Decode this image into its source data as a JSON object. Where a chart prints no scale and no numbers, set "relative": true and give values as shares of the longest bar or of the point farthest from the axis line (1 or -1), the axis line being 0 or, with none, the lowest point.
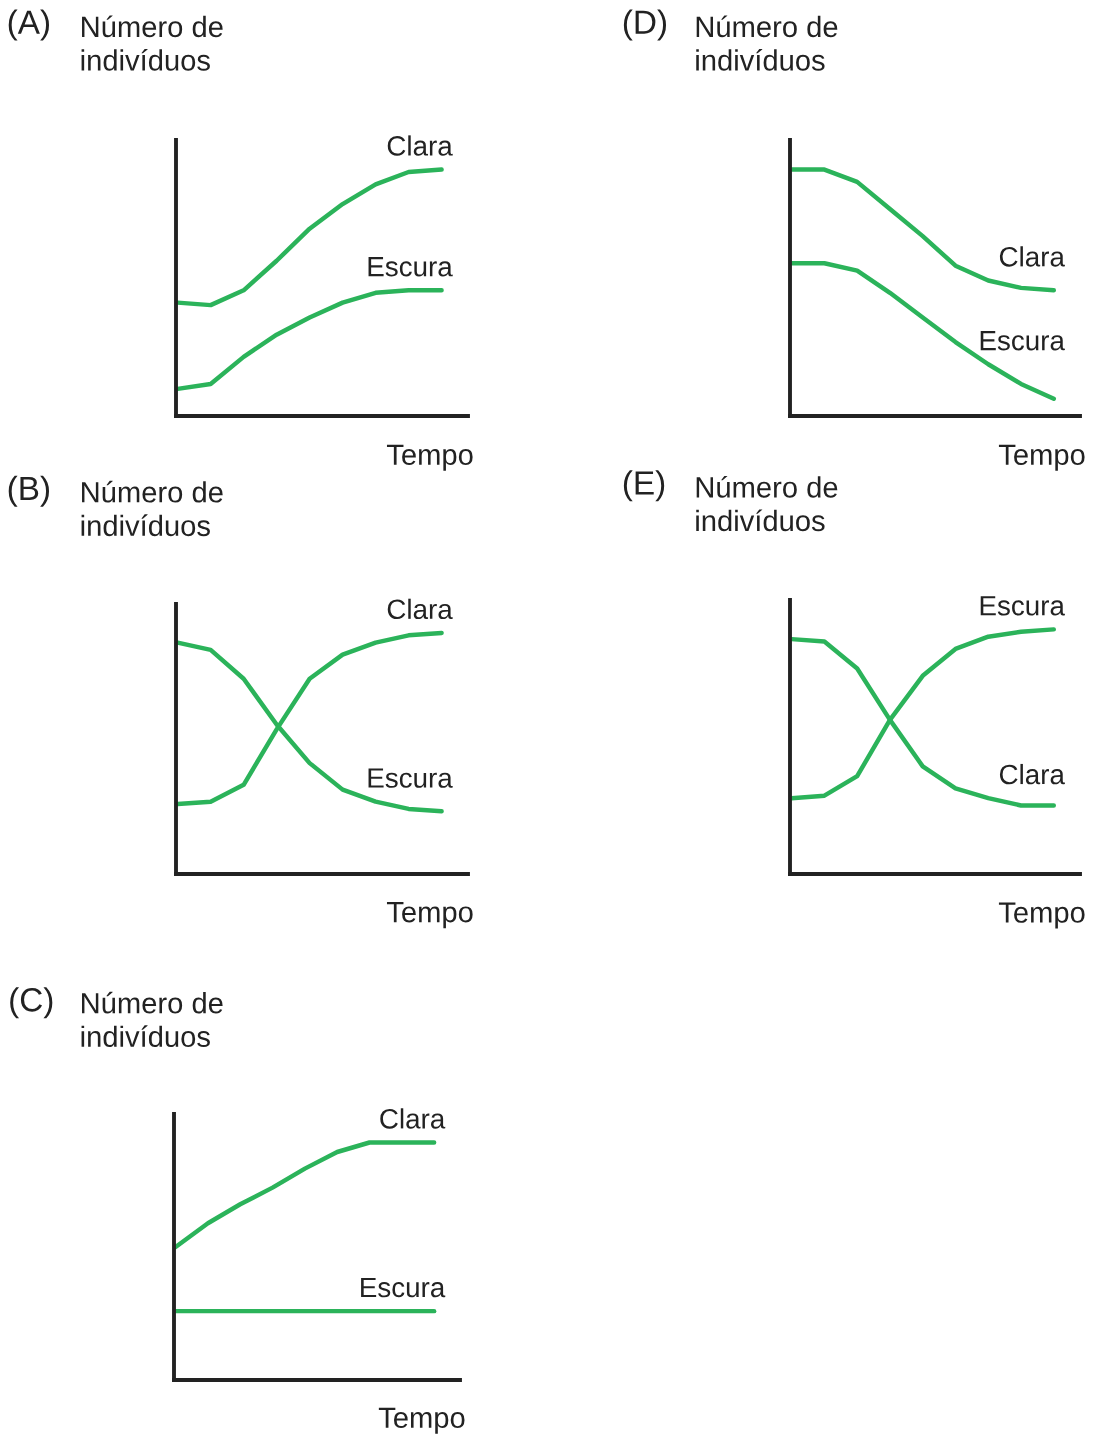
{
  "chart_data": [
    {
      "type": "line",
      "title": "(A)",
      "ylabel": "Número de\nindivíduos",
      "xlabel": "Tempo",
      "relative": true,
      "grid": false,
      "legend": false,
      "marker": "none",
      "line_style": "solid",
      "categories": [
        null,
        null,
        null,
        null,
        null,
        null,
        null,
        null,
        null
      ],
      "series": [
        {
          "name": "Clara",
          "color": "#2bb35a",
          "values": [
            0.46,
            0.45,
            0.51,
            0.63,
            0.76,
            0.86,
            0.94,
            0.99,
            1.0
          ]
        },
        {
          "name": "Escura",
          "color": "#2bb35a",
          "values": [
            0.11,
            0.13,
            0.24,
            0.33,
            0.4,
            0.46,
            0.5,
            0.51,
            0.51
          ]
        }
      ]
    },
    {
      "type": "line",
      "title": "(D)",
      "ylabel": "Número de\nindivíduos",
      "xlabel": "Tempo",
      "relative": true,
      "grid": false,
      "legend": false,
      "marker": "none",
      "line_style": "solid",
      "categories": [
        null,
        null,
        null,
        null,
        null,
        null,
        null,
        null,
        null
      ],
      "series": [
        {
          "name": "Clara",
          "color": "#2bb35a",
          "values": [
            1.0,
            1.0,
            0.95,
            0.84,
            0.73,
            0.61,
            0.55,
            0.52,
            0.51
          ]
        },
        {
          "name": "Escura",
          "color": "#2bb35a",
          "values": [
            0.62,
            0.62,
            0.59,
            0.5,
            0.4,
            0.3,
            0.21,
            0.13,
            0.07
          ]
        }
      ]
    },
    {
      "type": "line",
      "title": "(B)",
      "ylabel": "Número de\nindivíduos",
      "xlabel": "Tempo",
      "relative": true,
      "grid": false,
      "legend": false,
      "marker": "none",
      "line_style": "solid",
      "categories": [
        null,
        null,
        null,
        null,
        null,
        null,
        null,
        null,
        null
      ],
      "series": [
        {
          "name": "Clara",
          "color": "#2bb35a",
          "values": [
            0.29,
            0.3,
            0.37,
            0.6,
            0.81,
            0.91,
            0.96,
            0.99,
            1.0
          ]
        },
        {
          "name": "Escura",
          "color": "#2bb35a",
          "values": [
            0.96,
            0.93,
            0.81,
            0.62,
            0.46,
            0.35,
            0.3,
            0.27,
            0.26
          ]
        }
      ]
    },
    {
      "type": "line",
      "title": "(E)",
      "ylabel": "Número de\nindivíduos",
      "xlabel": "Tempo",
      "relative": true,
      "grid": false,
      "legend": false,
      "marker": "none",
      "line_style": "solid",
      "categories": [
        null,
        null,
        null,
        null,
        null,
        null,
        null,
        null,
        null
      ],
      "series": [
        {
          "name": "Escura",
          "color": "#2bb35a",
          "values": [
            0.31,
            0.32,
            0.4,
            0.63,
            0.81,
            0.92,
            0.97,
            0.99,
            1.0
          ]
        },
        {
          "name": "Clara",
          "color": "#2bb35a",
          "values": [
            0.96,
            0.95,
            0.84,
            0.63,
            0.44,
            0.35,
            0.31,
            0.28,
            0.28
          ]
        }
      ]
    },
    {
      "type": "line",
      "title": "(C)",
      "ylabel": "Número de\nindivíduos",
      "xlabel": "Tempo",
      "relative": true,
      "grid": false,
      "legend": false,
      "marker": "none",
      "line_style": "solid",
      "categories": [
        null,
        null,
        null,
        null,
        null,
        null,
        null,
        null,
        null
      ],
      "series": [
        {
          "name": "Clara",
          "color": "#2bb35a",
          "values": [
            0.56,
            0.66,
            0.74,
            0.81,
            0.89,
            0.96,
            1.0,
            1.0,
            1.0
          ]
        },
        {
          "name": "Escura",
          "color": "#2bb35a",
          "values": [
            0.29,
            0.29,
            0.29,
            0.29,
            0.29,
            0.29,
            0.29,
            0.29,
            0.29
          ]
        }
      ]
    }
  ]
}
